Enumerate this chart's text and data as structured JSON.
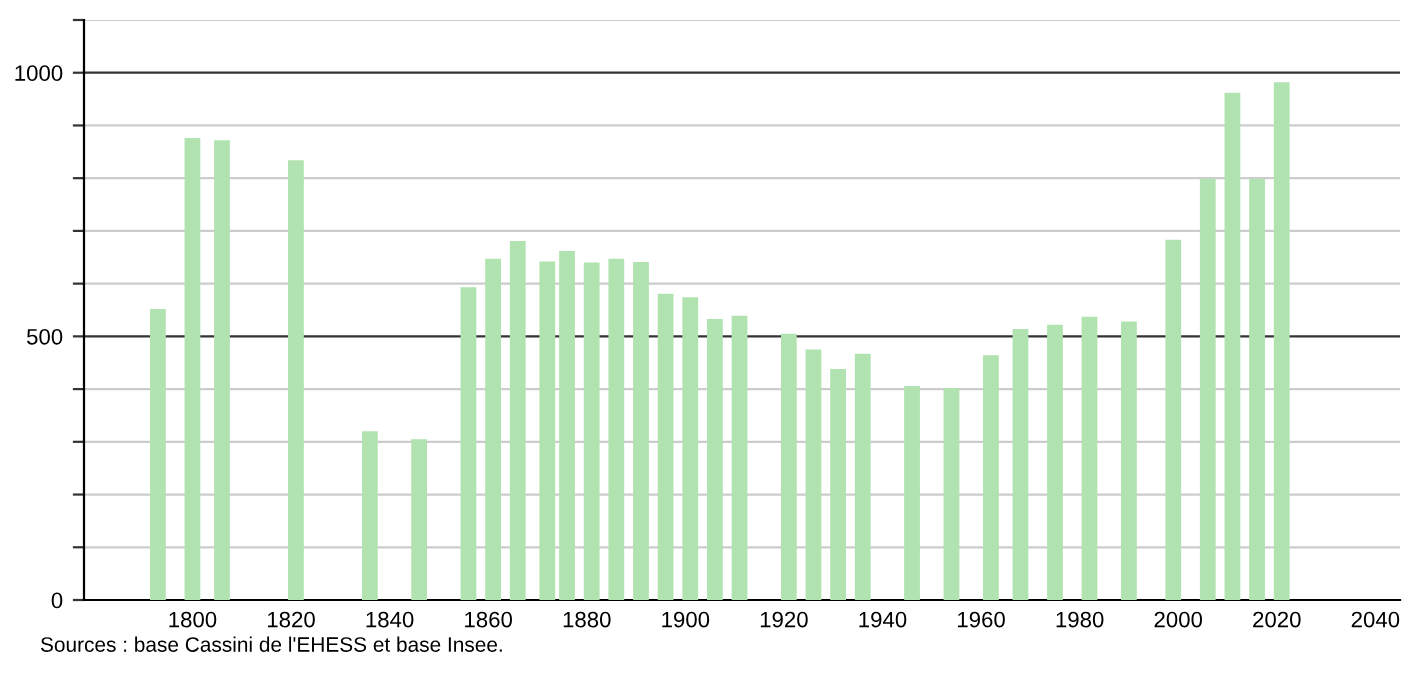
{
  "chart_data": {
    "type": "bar",
    "x": [
      1793,
      1800,
      1806,
      1821,
      1836,
      1846,
      1856,
      1861,
      1866,
      1872,
      1876,
      1881,
      1886,
      1891,
      1896,
      1901,
      1906,
      1911,
      1921,
      1926,
      1931,
      1936,
      1946,
      1954,
      1962,
      1968,
      1975,
      1982,
      1990,
      1999,
      2006,
      2011,
      2016,
      2021
    ],
    "values": [
      552,
      876,
      872,
      834,
      320,
      305,
      593,
      647,
      681,
      642,
      662,
      640,
      647,
      641,
      581,
      574,
      533,
      539,
      505,
      475,
      438,
      467,
      406,
      402,
      464,
      514,
      522,
      537,
      528,
      683,
      799,
      962,
      799,
      982
    ],
    "color": "#b0e3b0",
    "xlim": [
      1778,
      2045
    ],
    "xticks": [
      1800,
      1820,
      1840,
      1860,
      1880,
      1900,
      1920,
      1940,
      1960,
      1980,
      2000,
      2020,
      2040
    ],
    "ylim": [
      0,
      1100
    ],
    "yticks": [
      0,
      {
        "value": 100,
        "label": null
      },
      {
        "value": 200,
        "label": null
      },
      {
        "value": 300,
        "label": null
      },
      {
        "value": 400,
        "label": null
      },
      500,
      {
        "value": 600,
        "label": null
      },
      {
        "value": 700,
        "label": null
      },
      {
        "value": 800,
        "label": null
      },
      {
        "value": 900,
        "label": null
      },
      1000,
      {
        "value": 1100,
        "label": null
      }
    ],
    "grid": "y",
    "annotations": [
      "Sources : base Cassini de l'EHESS et base Insee."
    ]
  }
}
